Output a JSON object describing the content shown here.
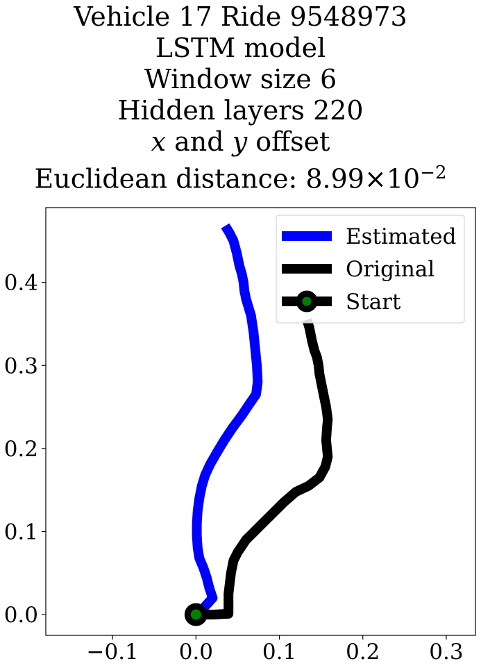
{
  "chart_data": {
    "type": "line",
    "title_lines": [
      "Vehicle 17 Ride 9548973",
      "LSTM model",
      "Window size 6",
      "Hidden layers 220"
    ],
    "title_offset": {
      "var_x": "x",
      "conj": "and",
      "var_y": "y",
      "word": "offset"
    },
    "title_distance": {
      "label": "Euclidean distance:",
      "mantissa": "8.99",
      "times": "×",
      "base": "10",
      "exponent": "−2"
    },
    "xlim": [
      -0.18,
      0.335
    ],
    "ylim": [
      -0.025,
      0.49
    ],
    "x_ticks": [
      -0.1,
      0.0,
      0.1,
      0.2,
      0.3
    ],
    "x_tick_labels": [
      "−0.1",
      "0.0",
      "0.1",
      "0.2",
      "0.3"
    ],
    "y_ticks": [
      0.0,
      0.1,
      0.2,
      0.3,
      0.4
    ],
    "y_tick_labels": [
      "0.0",
      "0.1",
      "0.2",
      "0.3",
      "0.4"
    ],
    "legend_position": "top-right",
    "series": [
      {
        "name": "Estimated",
        "color": "#0000ff",
        "x": [
          0.0,
          0.01,
          0.02,
          0.016,
          0.013,
          0.009,
          0.004,
          0.002,
          0.001,
          0.001,
          0.002,
          0.004,
          0.007,
          0.011,
          0.017,
          0.025,
          0.034,
          0.044,
          0.055,
          0.065,
          0.072,
          0.074,
          0.073,
          0.071,
          0.069,
          0.066,
          0.063,
          0.06,
          0.058,
          0.057,
          0.055,
          0.052,
          0.049,
          0.045,
          0.04,
          0.035
        ],
        "y": [
          0.0,
          0.009,
          0.02,
          0.032,
          0.044,
          0.056,
          0.068,
          0.08,
          0.095,
          0.11,
          0.125,
          0.14,
          0.155,
          0.168,
          0.181,
          0.195,
          0.21,
          0.225,
          0.24,
          0.255,
          0.265,
          0.28,
          0.3,
          0.32,
          0.34,
          0.36,
          0.37,
          0.38,
          0.39,
          0.4,
          0.41,
          0.42,
          0.435,
          0.45,
          0.46,
          0.468
        ]
      },
      {
        "name": "Original",
        "color": "#000000",
        "x": [
          0.0,
          0.02,
          0.039,
          0.039,
          0.042,
          0.045,
          0.05,
          0.06,
          0.075,
          0.09,
          0.105,
          0.12,
          0.135,
          0.148,
          0.155,
          0.158,
          0.157,
          0.156,
          0.157,
          0.158,
          0.156,
          0.153,
          0.15,
          0.148,
          0.147,
          0.145,
          0.142,
          0.139,
          0.136,
          0.133
        ],
        "y": [
          0.0,
          0.0,
          0.001,
          0.025,
          0.05,
          0.065,
          0.075,
          0.09,
          0.105,
          0.12,
          0.135,
          0.148,
          0.155,
          0.165,
          0.178,
          0.19,
          0.2,
          0.21,
          0.225,
          0.235,
          0.25,
          0.265,
          0.28,
          0.29,
          0.3,
          0.31,
          0.318,
          0.33,
          0.345,
          0.355
        ]
      }
    ],
    "start_marker": {
      "name": "Start",
      "x": 0.0,
      "y": 0.0,
      "edge_color": "#000000",
      "face_color": "#008000"
    }
  }
}
